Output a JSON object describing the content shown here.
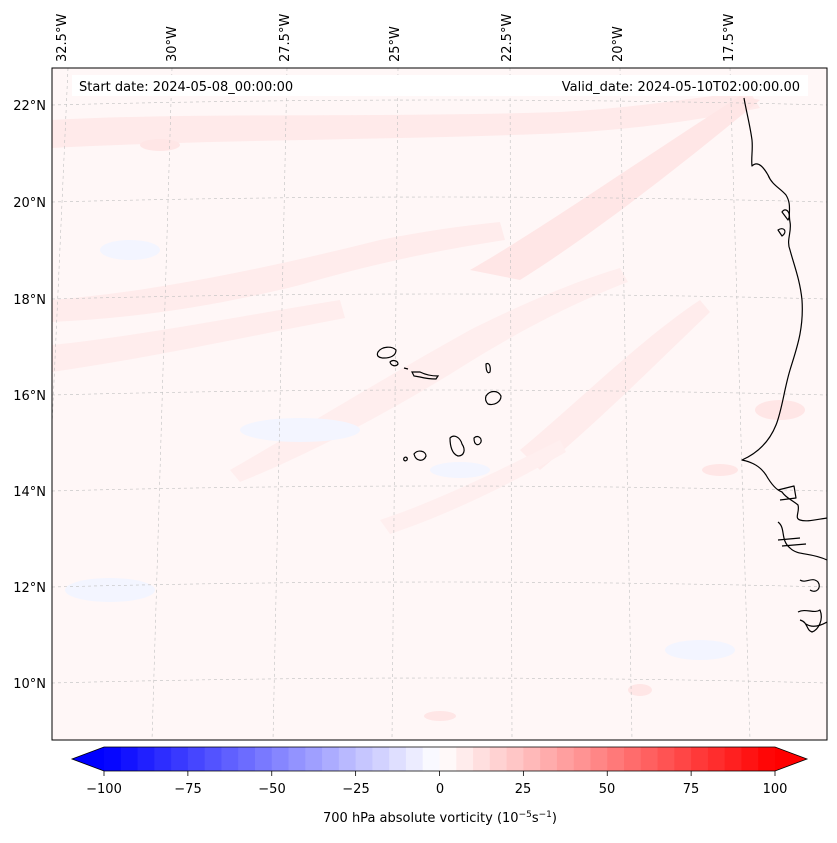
{
  "map": {
    "start_date_label": "Start date: 2024-05-08_00:00:00",
    "valid_date_label": "Valid_date: 2024-05-10T02:00:00.00",
    "lon_labels": [
      "32.5°W",
      "30°W",
      "27.5°W",
      "25°W",
      "22.5°W",
      "20°W",
      "17.5°W"
    ],
    "lat_labels": [
      "22°N",
      "20°N",
      "18°N",
      "16°N",
      "14°N",
      "12°N",
      "10°N"
    ],
    "field_colors": {
      "background": "#fff7f7",
      "light_red": "#ffeaea",
      "mid_red": "#ffe0e0",
      "light_blue": "#f3f5ff"
    }
  },
  "colorbar": {
    "ticks": [
      "−100",
      "−75",
      "−50",
      "−25",
      "0",
      "25",
      "50",
      "75",
      "100"
    ],
    "label_prefix": "700 hPa absolute vorticity (10",
    "label_exp1": "−5",
    "label_mid": "s",
    "label_exp2": "−1",
    "label_suffix": ")",
    "min_color": "#0000ff",
    "max_color": "#ff0000"
  }
}
